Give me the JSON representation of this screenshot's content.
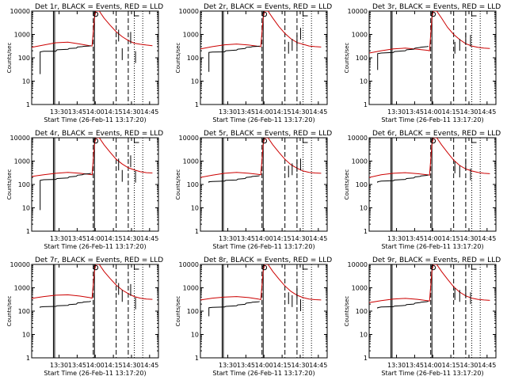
{
  "chart_data": {
    "type": "line",
    "start_time_label": "Start Time (26-Feb-11 13:17:20)",
    "ylabel": "Counts/sec",
    "yscale": "log",
    "ylim": [
      1,
      10000
    ],
    "y_ticks": [
      "1",
      "10",
      "100",
      "1000",
      "10000"
    ],
    "xlim_minutes_after_start": [
      -10,
      95
    ],
    "x_ticks": [
      {
        "label": "13:30",
        "t": 12.67
      },
      {
        "label": "13:45",
        "t": 27.67
      },
      {
        "label": "14:00",
        "t": 42.67
      },
      {
        "label": "14:15",
        "t": 57.67
      },
      {
        "label": "14:30",
        "t": 72.67
      },
      {
        "label": "14:45",
        "t": 87.67
      }
    ],
    "series_colors": {
      "events": "#000000",
      "lld": "#cc0000"
    },
    "markers": {
      "solid_lines_t": [
        8,
        9,
        42
      ],
      "dashed_lines_t": [
        41,
        60,
        70
      ],
      "dotted_lines_t": [
        75,
        82
      ],
      "circle_t": 43,
      "bracket_t": 75
    },
    "panels": [
      {
        "title": "Det 1r, BLACK = Events, RED = LLD",
        "black_x": [
          -3,
          -3,
          0,
          10,
          11,
          20,
          21,
          27,
          28,
          32,
          33,
          38,
          39
        ],
        "black_y": [
          20,
          180,
          190,
          190,
          220,
          230,
          250,
          260,
          290,
          300,
          310,
          320,
          330
        ],
        "red_x": [
          -10,
          0,
          10,
          20,
          30,
          38,
          40,
          42,
          43,
          46,
          50,
          55,
          60,
          65,
          70,
          75,
          80,
          85,
          90
        ],
        "red_y": [
          280,
          350,
          440,
          470,
          390,
          330,
          320,
          5000,
          10000,
          10000,
          5000,
          2500,
          1300,
          800,
          550,
          420,
          380,
          350,
          330
        ],
        "spikes": [
          {
            "t": 62,
            "y": 500
          },
          {
            "t": 65,
            "y": 80
          },
          {
            "t": 72,
            "y": 400
          },
          {
            "t": 76,
            "y": 60
          }
        ]
      },
      {
        "title": "Det 2r, BLACK = Events, RED = LLD",
        "black_x": [
          -3,
          -3,
          0,
          10,
          11,
          20,
          21,
          27,
          28,
          32,
          33,
          38,
          39
        ],
        "black_y": [
          25,
          170,
          175,
          180,
          200,
          215,
          235,
          250,
          280,
          290,
          300,
          310,
          320
        ],
        "red_x": [
          -10,
          0,
          10,
          20,
          30,
          38,
          40,
          42,
          43,
          46,
          50,
          55,
          60,
          65,
          70,
          75,
          80,
          85,
          90
        ],
        "red_y": [
          240,
          300,
          360,
          390,
          350,
          310,
          300,
          5000,
          10000,
          10000,
          5000,
          2200,
          1100,
          650,
          450,
          380,
          320,
          300,
          290
        ],
        "spikes": [
          {
            "t": 63,
            "y": 150
          },
          {
            "t": 66,
            "y": 200
          },
          {
            "t": 70,
            "y": 300
          },
          {
            "t": 73,
            "y": 600
          }
        ]
      },
      {
        "title": "Det 3r, BLACK = Events, RED = LLD",
        "black_x": [
          -3,
          -3,
          0,
          10,
          11,
          20,
          21,
          27,
          28,
          32,
          33,
          38,
          39
        ],
        "black_y": [
          30,
          150,
          160,
          170,
          185,
          200,
          220,
          235,
          260,
          275,
          285,
          300,
          310
        ],
        "red_x": [
          -10,
          0,
          10,
          20,
          30,
          38,
          40,
          42,
          43,
          46,
          50,
          55,
          60,
          65,
          70,
          75,
          80,
          85,
          90
        ],
        "red_y": [
          160,
          200,
          240,
          260,
          230,
          210,
          200,
          5000,
          10000,
          10000,
          5000,
          2000,
          1000,
          600,
          400,
          320,
          280,
          260,
          250
        ],
        "spikes": [
          {
            "t": 61,
            "y": 150
          },
          {
            "t": 65,
            "y": 200
          },
          {
            "t": 70,
            "y": 350
          },
          {
            "t": 74,
            "y": 300
          }
        ]
      },
      {
        "title": "Det 4r, BLACK = Events, RED = LLD",
        "black_x": [
          -3,
          -3,
          0,
          10,
          11,
          20,
          21,
          27,
          28,
          32,
          33,
          38,
          39
        ],
        "black_y": [
          8,
          150,
          160,
          165,
          180,
          190,
          210,
          225,
          250,
          260,
          275,
          290,
          300
        ],
        "red_x": [
          -10,
          0,
          10,
          20,
          30,
          38,
          40,
          42,
          43,
          46,
          50,
          55,
          60,
          65,
          70,
          75,
          80,
          85,
          90
        ],
        "red_y": [
          220,
          260,
          300,
          330,
          300,
          270,
          260,
          5000,
          10000,
          10000,
          5000,
          2400,
          1200,
          750,
          520,
          420,
          350,
          320,
          310
        ],
        "spikes": [
          {
            "t": 62,
            "y": 400
          },
          {
            "t": 65,
            "y": 130
          },
          {
            "t": 72,
            "y": 550
          },
          {
            "t": 76,
            "y": 120
          }
        ]
      },
      {
        "title": "Det 5r, BLACK = Events, RED = LLD",
        "black_x": [
          -3,
          -3,
          0,
          10,
          11,
          20,
          21,
          27,
          28,
          32,
          33,
          38,
          39
        ],
        "black_y": [
          120,
          130,
          135,
          140,
          150,
          155,
          170,
          180,
          200,
          210,
          220,
          230,
          240
        ],
        "red_x": [
          -10,
          0,
          10,
          20,
          30,
          38,
          40,
          42,
          43,
          46,
          50,
          55,
          60,
          65,
          70,
          75,
          80,
          85,
          90
        ],
        "red_y": [
          200,
          250,
          300,
          330,
          300,
          270,
          260,
          5000,
          10000,
          10000,
          5000,
          2400,
          1200,
          700,
          500,
          380,
          330,
          310,
          300
        ],
        "spikes": [
          {
            "t": 63,
            "y": 200
          },
          {
            "t": 66,
            "y": 250
          },
          {
            "t": 70,
            "y": 350
          },
          {
            "t": 73,
            "y": 400
          }
        ]
      },
      {
        "title": "Det 6r, BLACK = Events, RED = LLD",
        "black_x": [
          -3,
          -3,
          0,
          10,
          11,
          20,
          21,
          27,
          28,
          32,
          33,
          38,
          39
        ],
        "black_y": [
          120,
          130,
          140,
          145,
          155,
          165,
          180,
          190,
          210,
          220,
          230,
          245,
          260
        ],
        "red_x": [
          -10,
          0,
          10,
          20,
          30,
          38,
          40,
          42,
          43,
          46,
          50,
          55,
          60,
          65,
          70,
          75,
          80,
          85,
          90
        ],
        "red_y": [
          200,
          260,
          300,
          320,
          290,
          260,
          250,
          5000,
          10000,
          10000,
          5000,
          2300,
          1100,
          650,
          460,
          380,
          330,
          300,
          290
        ],
        "spikes": [
          {
            "t": 61,
            "y": 300
          },
          {
            "t": 65,
            "y": 200
          },
          {
            "t": 70,
            "y": 400
          },
          {
            "t": 74,
            "y": 150
          }
        ]
      },
      {
        "title": "Det 7r, BLACK = Events, RED = LLD",
        "black_x": [
          -3,
          -3,
          0,
          10,
          11,
          20,
          21,
          27,
          28,
          32,
          33,
          38,
          39
        ],
        "black_y": [
          140,
          150,
          155,
          160,
          170,
          175,
          190,
          200,
          225,
          235,
          245,
          255,
          265
        ],
        "red_x": [
          -10,
          0,
          10,
          20,
          30,
          38,
          40,
          42,
          43,
          46,
          50,
          55,
          60,
          65,
          70,
          75,
          80,
          85,
          90
        ],
        "red_y": [
          350,
          420,
          480,
          500,
          440,
          380,
          360,
          5000,
          10000,
          10000,
          5000,
          2500,
          1300,
          800,
          560,
          420,
          360,
          330,
          320
        ],
        "spikes": [
          {
            "t": 62,
            "y": 500
          },
          {
            "t": 65,
            "y": 250
          },
          {
            "t": 72,
            "y": 450
          },
          {
            "t": 76,
            "y": 120
          }
        ]
      },
      {
        "title": "Det 8r, BLACK = Events, RED = LLD",
        "black_x": [
          -3,
          -3,
          0,
          10,
          11,
          20,
          21,
          27,
          28,
          32,
          33,
          38,
          39
        ],
        "black_y": [
          60,
          140,
          145,
          150,
          160,
          170,
          185,
          195,
          220,
          230,
          240,
          250,
          260
        ],
        "red_x": [
          -10,
          0,
          10,
          20,
          30,
          38,
          40,
          42,
          43,
          46,
          50,
          55,
          60,
          65,
          70,
          75,
          80,
          85,
          90
        ],
        "red_y": [
          300,
          360,
          400,
          420,
          380,
          330,
          310,
          5000,
          10000,
          10000,
          5000,
          2400,
          1200,
          700,
          480,
          380,
          330,
          310,
          300
        ],
        "spikes": [
          {
            "t": 63,
            "y": 200
          },
          {
            "t": 66,
            "y": 150
          },
          {
            "t": 70,
            "y": 300
          },
          {
            "t": 73,
            "y": 100
          }
        ]
      },
      {
        "title": "Det 9r, BLACK = Events, RED = LLD",
        "black_x": [
          -3,
          -3,
          0,
          10,
          11,
          20,
          21,
          27,
          28,
          32,
          33,
          38,
          39
        ],
        "black_y": [
          130,
          140,
          150,
          155,
          165,
          175,
          190,
          200,
          220,
          230,
          240,
          255,
          270
        ],
        "red_x": [
          -10,
          0,
          10,
          20,
          30,
          38,
          40,
          42,
          43,
          46,
          50,
          55,
          60,
          65,
          70,
          75,
          80,
          85,
          90
        ],
        "red_y": [
          230,
          280,
          330,
          350,
          320,
          280,
          270,
          5000,
          10000,
          10000,
          5000,
          2300,
          1100,
          650,
          450,
          360,
          320,
          300,
          290
        ],
        "spikes": [
          {
            "t": 61,
            "y": 300
          },
          {
            "t": 65,
            "y": 250
          },
          {
            "t": 70,
            "y": 350
          },
          {
            "t": 74,
            "y": 200
          }
        ]
      }
    ]
  }
}
